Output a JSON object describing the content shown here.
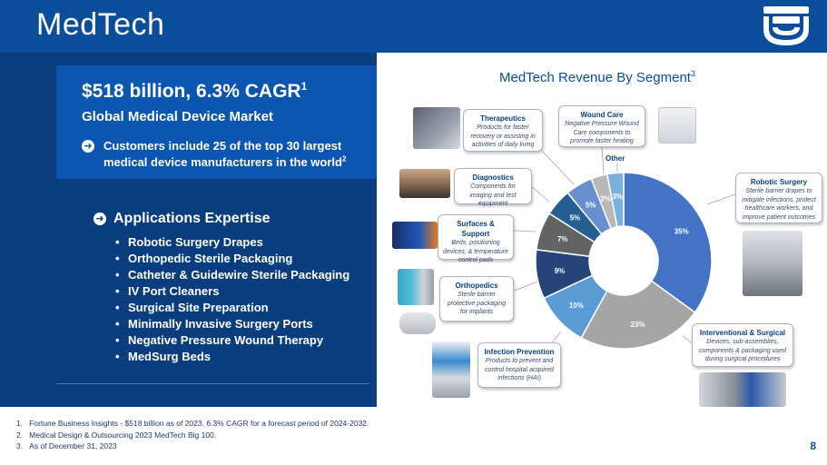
{
  "header": {
    "title": "MedTech"
  },
  "highlight": {
    "headline": "$518 billion, 6.3% CAGR",
    "headline_sup": "1",
    "subtitle": "Global Medical Device Market",
    "bullet": "Customers include 25 of the top 30 largest medical device manufacturers in the world",
    "bullet_sup": "2"
  },
  "applications": {
    "title": "Applications Expertise",
    "items": [
      "Robotic Surgery Drapes",
      "Orthopedic Sterile Packaging",
      "Catheter & Guidewire Sterile Packaging",
      "IV Port Cleaners",
      "Surgical Site Preparation",
      "Minimally Invasive Surgery Ports",
      "Negative Pressure Wound Therapy",
      "MedSurg Beds"
    ]
  },
  "footnotes": [
    "1.   Fortune Business Insights - $518 billion as of 2023. 6.3% CAGR for a forecast period of 2024-2032.",
    "2.   Medical Design & Outsourcing 2023 MedTech Big 100.",
    "3.   As of December 31, 2023"
  ],
  "page_number": "8",
  "chart_data": {
    "type": "pie",
    "donut": true,
    "title": "MedTech Revenue By Segment",
    "title_sup": "3",
    "slices": [
      {
        "name": "Robotic Surgery",
        "value": 35,
        "label": "35%",
        "color": "#4472c4"
      },
      {
        "name": "Interventional & Surgical",
        "value": 23,
        "label": "23%",
        "color": "#a5a5a5"
      },
      {
        "name": "Infection Prevention",
        "value": 10,
        "label": "10%",
        "color": "#5b9bd5"
      },
      {
        "name": "Orthopedics",
        "value": 9,
        "label": "9%",
        "color": "#264478"
      },
      {
        "name": "Surfaces & Support",
        "value": 7,
        "label": "7%",
        "color": "#636363"
      },
      {
        "name": "Diagnostics",
        "value": 5,
        "label": "5%",
        "color": "#255e91"
      },
      {
        "name": "Therapeutics",
        "value": 5,
        "label": "5%",
        "color": "#698ed0"
      },
      {
        "name": "Wound Care",
        "value": 3,
        "label": "3%",
        "color": "#b7b7b7"
      },
      {
        "name": "Other",
        "value": 3,
        "label": "3%",
        "color": "#7cafdd"
      }
    ],
    "callouts": {
      "therapeutics": {
        "title": "Therapeutics",
        "desc": "Products for faster recovery or assisting in activities of daily living"
      },
      "wound_care": {
        "title": "Wound Care",
        "desc": "Negative Pressure Wound Care components to promote faster healing"
      },
      "other": {
        "title": "Other"
      },
      "robotic": {
        "title": "Robotic Surgery",
        "desc": "Sterile barrier drapes to mitigate infections, protect healthcare workers, and improve patient outcomes"
      },
      "diagnostics": {
        "title": "Diagnostics",
        "desc": "Components for imaging and test equipment"
      },
      "surfaces": {
        "title": "Surfaces & Support",
        "desc": "Beds, positioning devices, & temperature control pads"
      },
      "orthopedics": {
        "title": "Orthopedics",
        "desc": "Sterile barrier protective packaging for implants"
      },
      "interventional": {
        "title": "Interventional & Surgical",
        "desc": "Devices, sub-assemblies, components & packaging used during surgical procedures"
      },
      "infection": {
        "title": "Infection Prevention",
        "desc": "Products to prevent and control hospital acquired infections (HAI)"
      }
    }
  },
  "colors": {
    "header_blue": "#0a4d9b",
    "panel_navy": "#0a3d7d",
    "highlight_blue": "#0a56b0"
  }
}
